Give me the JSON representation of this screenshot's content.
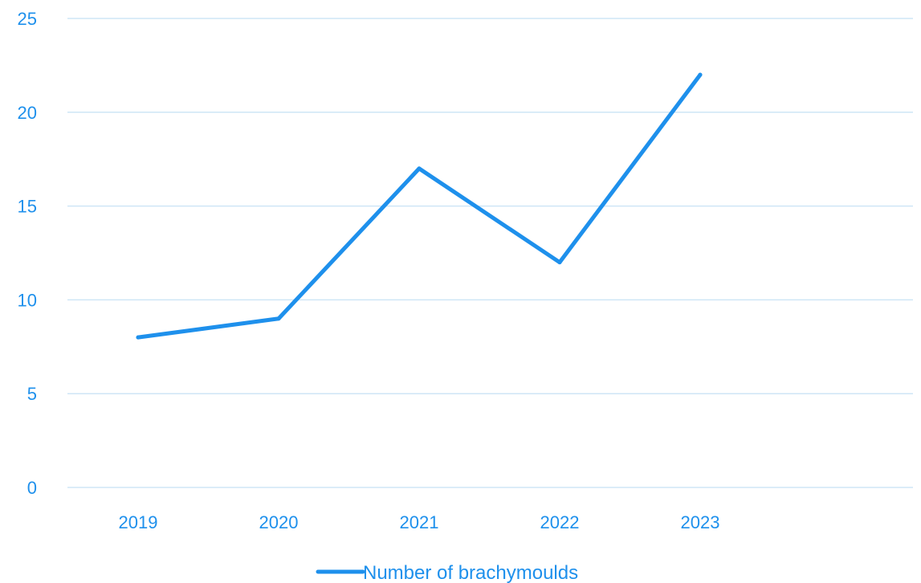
{
  "chart_data": {
    "type": "line",
    "categories": [
      "2019",
      "2020",
      "2021",
      "2022",
      "2023"
    ],
    "series": [
      {
        "name": "Number of brachymoulds",
        "values": [
          8,
          9,
          17,
          12,
          22
        ]
      }
    ],
    "ylim": [
      0,
      25
    ],
    "y_ticks": [
      "0",
      "5",
      "10",
      "15",
      "20",
      "25"
    ],
    "grid": true,
    "legend_position": "bottom",
    "colors": {
      "series": "#1e90ec",
      "text": "#1e90ec",
      "grid": "#cfe6f6"
    }
  }
}
